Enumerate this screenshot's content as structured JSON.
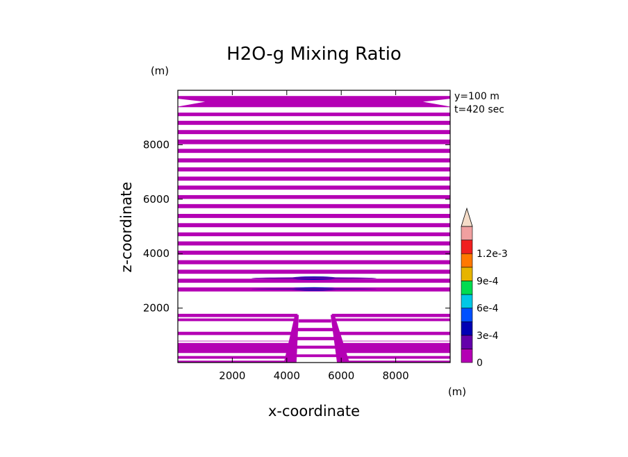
{
  "chart_data": {
    "type": "heatmap",
    "title": "H2O-g Mixing Ratio",
    "xlabel": "x-coordinate",
    "ylabel": "z-coordinate",
    "x_unit": "(m)",
    "z_unit": "(m)",
    "info_lines": [
      "y=100  m",
      "t=420  sec"
    ],
    "xlim": [
      0,
      10000
    ],
    "zlim": [
      0,
      10000
    ],
    "x_ticks": [
      2000,
      4000,
      6000,
      8000
    ],
    "z_ticks": [
      2000,
      4000,
      6000,
      8000
    ],
    "colorbar": {
      "levels": [
        0,
        0.00015,
        0.0003,
        0.00045,
        0.0006,
        0.00075,
        0.0009,
        0.00105,
        0.0012,
        0.00135
      ],
      "labeled_values": [
        0,
        0.0003,
        0.0006,
        0.0009,
        0.0012
      ],
      "labels": [
        "0",
        "3e-4",
        "6e-4",
        "9e-4",
        "1.2e-3"
      ],
      "colors": [
        "#b400b4",
        "#6400aa",
        "#0000b4",
        "#0050ff",
        "#00c8e6",
        "#00dc50",
        "#e6b400",
        "#ff7800",
        "#f02020",
        "#f0a0a0",
        "#f5dcc8"
      ],
      "extend": "max"
    },
    "field": {
      "fill_color": "#b400b4",
      "band_fill_value": 0.0001,
      "bands_z": [
        [
          9790,
          9380
        ],
        [
          9180,
          9050
        ],
        [
          8880,
          8730
        ],
        [
          8540,
          8390
        ],
        [
          8190,
          8020
        ],
        [
          7850,
          7700
        ],
        [
          7500,
          7350
        ],
        [
          7170,
          7020
        ],
        [
          6830,
          6680
        ],
        [
          6500,
          6350
        ],
        [
          6150,
          6010
        ],
        [
          5820,
          5670
        ],
        [
          5460,
          5310
        ],
        [
          5120,
          4970
        ],
        [
          4780,
          4640
        ],
        [
          4450,
          4300
        ],
        [
          4110,
          3960
        ],
        [
          3760,
          3610
        ],
        [
          3410,
          3260
        ],
        [
          3080,
          2930
        ],
        [
          2760,
          2610
        ],
        [
          1790,
          1520
        ],
        [
          1130,
          1010
        ],
        [
          800,
          0
        ]
      ],
      "gaps_z": [
        [
          1670,
          1620
        ],
        [
          780,
          720
        ],
        [
          350,
          240
        ],
        [
          140,
          70
        ]
      ],
      "crater_x": [
        4050,
        6150
      ],
      "crater_bands_z": [
        [
          1590,
          1470
        ],
        [
          1270,
          1150
        ],
        [
          940,
          820
        ],
        [
          620,
          510
        ],
        [
          300,
          200
        ]
      ],
      "local_maxima": [
        {
          "x": 5000,
          "z": 3100,
          "value": 0.00025
        },
        {
          "x": 5000,
          "z": 2700,
          "value": 0.00035
        }
      ]
    }
  }
}
